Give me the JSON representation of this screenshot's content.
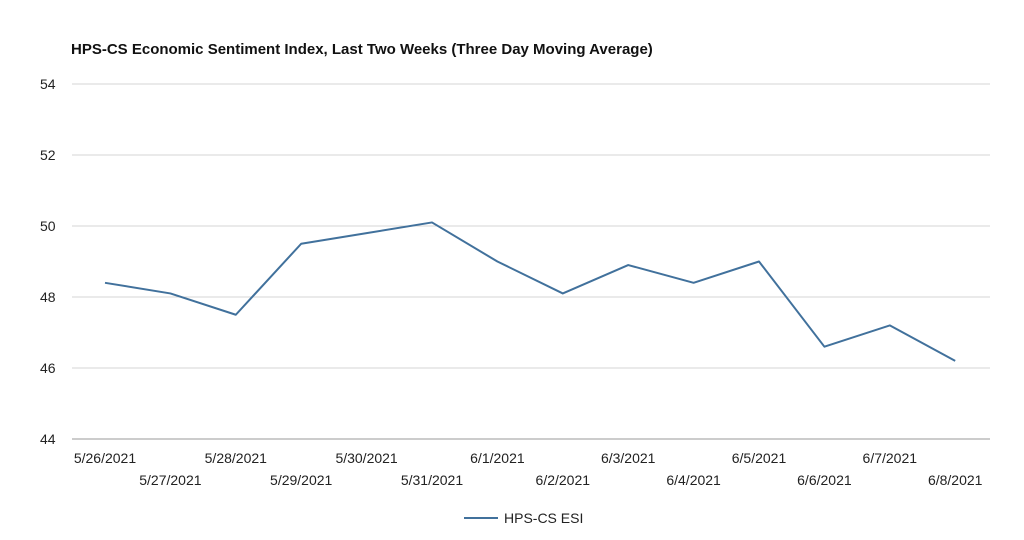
{
  "chart_data": {
    "type": "line",
    "title": "HPS-CS Economic Sentiment Index, Last Two Weeks (Three Day Moving Average)",
    "xlabel": "",
    "ylabel": "",
    "categories": [
      "5/26/2021",
      "5/27/2021",
      "5/28/2021",
      "5/29/2021",
      "5/30/2021",
      "5/31/2021",
      "6/1/2021",
      "6/2/2021",
      "6/3/2021",
      "6/4/2021",
      "6/5/2021",
      "6/6/2021",
      "6/7/2021",
      "6/8/2021"
    ],
    "series": [
      {
        "name": "HPS-CS ESI",
        "color": "#41719c",
        "values": [
          48.4,
          48.1,
          47.5,
          49.5,
          49.8,
          50.1,
          49.0,
          48.1,
          48.9,
          48.4,
          49.0,
          46.6,
          47.2,
          46.2
        ]
      }
    ],
    "ylim": [
      44,
      54
    ],
    "yticks": [
      "44",
      "46",
      "48",
      "50",
      "52",
      "54"
    ],
    "grid": true,
    "legend": "bottom-center"
  }
}
